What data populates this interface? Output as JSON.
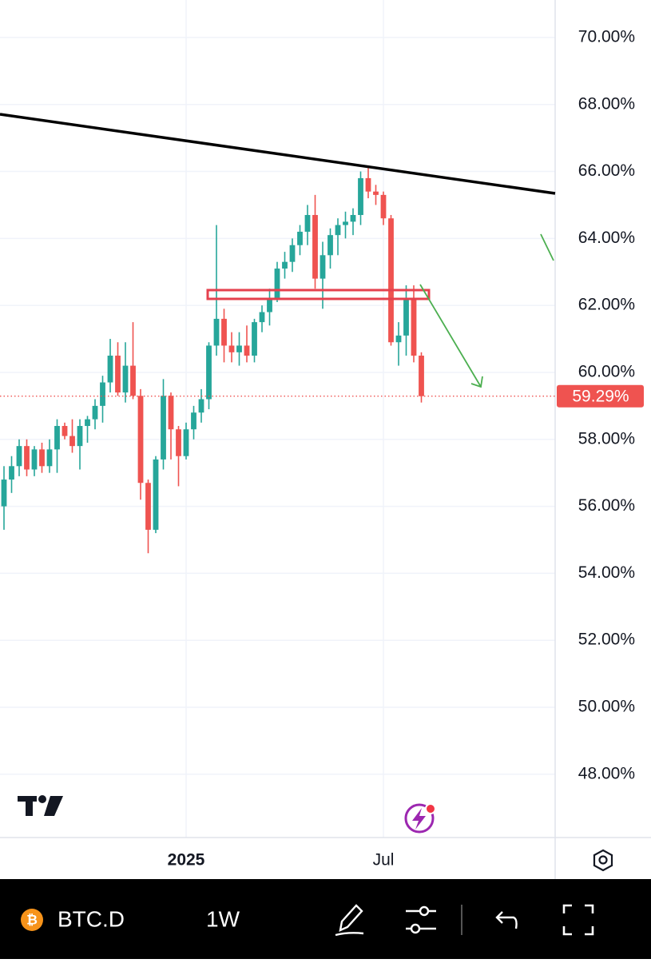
{
  "chart_data": {
    "type": "candlestick",
    "symbol": "BTC.D",
    "interval": "1W",
    "open": [
      56.0,
      56.8,
      57.2,
      57.8,
      57.1,
      57.7,
      57.2,
      57.7,
      58.4,
      58.1,
      57.8,
      58.4,
      58.6,
      59.0,
      59.7,
      60.5,
      59.4,
      60.2,
      59.3,
      56.7,
      55.3,
      57.4,
      59.3,
      58.3,
      57.5,
      58.3,
      58.8,
      59.2,
      60.8,
      61.6,
      60.8,
      60.6,
      60.8,
      60.5,
      61.5,
      61.8,
      62.2,
      63.1,
      63.3,
      63.8,
      64.2,
      64.7,
      62.8,
      63.5,
      64.1,
      64.4,
      64.5,
      64.7,
      65.8,
      65.4,
      65.3,
      64.6,
      60.9,
      61.1,
      62.2,
      60.5
    ],
    "high": [
      57.2,
      57.5,
      58.0,
      58.0,
      57.8,
      57.9,
      58.0,
      58.6,
      58.5,
      58.6,
      58.6,
      58.7,
      59.2,
      59.9,
      61.0,
      60.9,
      60.9,
      61.5,
      59.5,
      56.8,
      57.5,
      59.8,
      59.4,
      58.4,
      58.5,
      59.0,
      59.5,
      60.9,
      64.4,
      61.9,
      61.2,
      61.2,
      61.4,
      61.6,
      62.0,
      62.5,
      63.3,
      63.6,
      64.0,
      64.4,
      65.0,
      65.3,
      63.9,
      64.3,
      64.6,
      64.8,
      64.9,
      66.0,
      66.1,
      65.6,
      65.4,
      64.7,
      61.5,
      62.6,
      62.6,
      60.6
    ],
    "low": [
      55.3,
      56.4,
      56.9,
      56.9,
      56.9,
      57.0,
      57.0,
      57.0,
      58.0,
      57.6,
      57.1,
      57.9,
      58.3,
      58.5,
      59.4,
      59.3,
      59.1,
      59.2,
      56.2,
      54.6,
      55.2,
      57.1,
      57.4,
      56.6,
      57.4,
      58.0,
      58.5,
      58.9,
      60.5,
      60.3,
      60.3,
      60.2,
      60.3,
      60.3,
      61.2,
      61.4,
      62.1,
      62.8,
      63.0,
      63.5,
      63.8,
      62.5,
      61.9,
      63.1,
      63.5,
      64.0,
      64.1,
      64.4,
      65.2,
      65.0,
      64.4,
      60.8,
      60.2,
      60.5,
      60.3,
      59.1
    ],
    "close": [
      56.8,
      57.2,
      57.8,
      57.1,
      57.7,
      57.2,
      57.7,
      58.4,
      58.1,
      57.8,
      58.4,
      58.6,
      59.0,
      59.7,
      60.5,
      59.4,
      60.2,
      59.3,
      56.7,
      55.3,
      57.4,
      59.3,
      58.3,
      57.5,
      58.3,
      58.8,
      59.2,
      60.8,
      61.6,
      60.8,
      60.6,
      60.8,
      60.5,
      61.5,
      61.8,
      62.2,
      63.1,
      63.3,
      63.8,
      64.2,
      64.7,
      62.8,
      63.5,
      64.1,
      64.4,
      64.5,
      64.7,
      65.8,
      65.4,
      65.3,
      64.6,
      60.9,
      61.1,
      62.2,
      60.5,
      59.29
    ],
    "up_color": "#26a69a",
    "down_color": "#ef5350",
    "ylim": [
      46.11,
      71.12
    ],
    "yticks": [
      {
        "value": 48,
        "label": "48.00%"
      },
      {
        "value": 50,
        "label": "50.00%"
      },
      {
        "value": 52,
        "label": "52.00%"
      },
      {
        "value": 54,
        "label": "54.00%"
      },
      {
        "value": 56,
        "label": "56.00%"
      },
      {
        "value": 58,
        "label": "58.00%"
      },
      {
        "value": 60,
        "label": "60.00%"
      },
      {
        "value": 62,
        "label": "62.00%"
      },
      {
        "value": 64,
        "label": "64.00%"
      },
      {
        "value": 66,
        "label": "66.00%"
      },
      {
        "value": 68,
        "label": "68.00%"
      },
      {
        "value": 70,
        "label": "70.00%"
      }
    ],
    "xticks": [
      {
        "value": 24,
        "label": "2025"
      },
      {
        "value": 50,
        "label": "Jul"
      }
    ],
    "last_price": {
      "value": 59.29,
      "label": "59.29%"
    },
    "grid": true
  }
}
